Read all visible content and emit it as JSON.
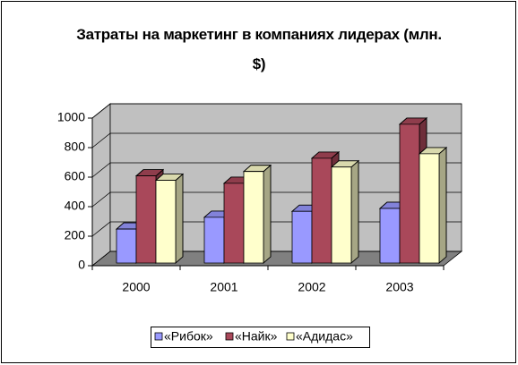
{
  "chart_data": {
    "type": "bar3d",
    "title": "Затраты на маркетинг в компаниях лидерах (млн. $)",
    "categories": [
      "2000",
      "2001",
      "2002",
      "2003"
    ],
    "series": [
      {
        "name": "«Рибок»",
        "color": "#9999ff",
        "values": [
          230,
          310,
          350,
          370
        ]
      },
      {
        "name": "«Найк»",
        "color": "#a9485a",
        "values": [
          590,
          540,
          710,
          940
        ]
      },
      {
        "name": "«Адидас»",
        "color": "#ffffcc",
        "values": [
          560,
          620,
          650,
          740
        ]
      }
    ],
    "ylim": [
      0,
      1000
    ],
    "yticks": [
      0,
      200,
      400,
      600,
      800,
      1000
    ],
    "grid": true,
    "legend": "bottom"
  }
}
